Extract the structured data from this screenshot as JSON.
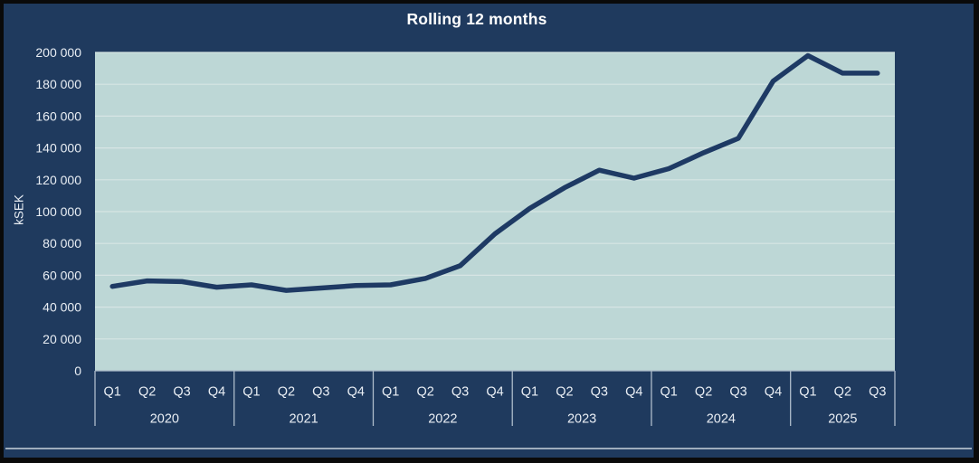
{
  "chart_data": {
    "type": "line",
    "title": "Rolling 12 months",
    "ylabel": "kSEK",
    "xlabel": "",
    "ylim": [
      0,
      200000
    ],
    "grid": "horizontal",
    "legend": "none",
    "y_ticks": [
      "0",
      "20 000",
      "40 000",
      "60 000",
      "80 000",
      "100 000",
      "120 000",
      "140 000",
      "160 000",
      "180 000",
      "200 000"
    ],
    "groups": [
      {
        "year": "2020",
        "quarters": [
          "Q1",
          "Q2",
          "Q3",
          "Q4"
        ]
      },
      {
        "year": "2021",
        "quarters": [
          "Q1",
          "Q2",
          "Q3",
          "Q4"
        ]
      },
      {
        "year": "2022",
        "quarters": [
          "Q1",
          "Q2",
          "Q3",
          "Q4"
        ]
      },
      {
        "year": "2023",
        "quarters": [
          "Q1",
          "Q2",
          "Q3",
          "Q4"
        ]
      },
      {
        "year": "2024",
        "quarters": [
          "Q1",
          "Q2",
          "Q3",
          "Q4"
        ]
      },
      {
        "year": "2025",
        "quarters": [
          "Q1",
          "Q2",
          "Q3"
        ]
      }
    ],
    "series": [
      {
        "name": "Rolling 12 months",
        "values": [
          53000,
          56500,
          56000,
          52500,
          54000,
          50500,
          52000,
          53500,
          54000,
          58000,
          66000,
          86000,
          102000,
          115000,
          126000,
          121000,
          127000,
          137000,
          146000,
          182000,
          198000,
          187000,
          187000
        ]
      }
    ]
  },
  "colors": {
    "frame": "#0A0A0A",
    "background": "#1F3A5E",
    "plot_fill": "#BDD7D6",
    "gridline": "#D7E5E4",
    "axis_line": "#AEBDCB",
    "line": "#1E3A64",
    "text": "#E9EEF4",
    "title": "#FFFFFF",
    "footer_divider": "#B5C2CE"
  }
}
